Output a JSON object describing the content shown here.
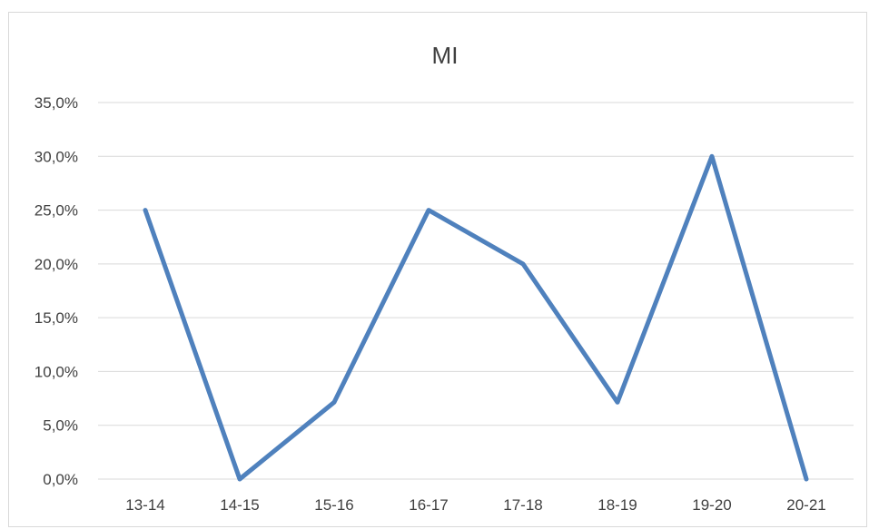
{
  "chart_data": {
    "type": "line",
    "title": "MI",
    "xlabel": "",
    "ylabel": "",
    "categories": [
      "13-14",
      "14-15",
      "15-16",
      "16-17",
      "17-18",
      "18-19",
      "19-20",
      "20-21"
    ],
    "series": [
      {
        "values": [
          0.25,
          0.0,
          0.0714,
          0.25,
          0.2,
          0.0714,
          0.3,
          0.0
        ]
      }
    ],
    "ylim": [
      0,
      0.35
    ],
    "yticks": [
      "0,0%",
      "5,0%",
      "10,0%",
      "15,0%",
      "20,0%",
      "25,0%",
      "30,0%",
      "35,0%"
    ],
    "ytick_values": [
      0,
      0.05,
      0.1,
      0.15,
      0.2,
      0.25,
      0.3,
      0.35
    ],
    "grid": true,
    "legend": "none",
    "colors": {
      "series": "#4f81bd",
      "grid": "#d9d9d9",
      "text": "#404040"
    }
  }
}
